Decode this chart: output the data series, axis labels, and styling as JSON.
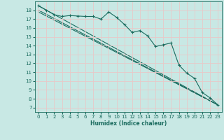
{
  "xlabel": "Humidex (Indice chaleur)",
  "bg_color": "#c8e8e4",
  "grid_color": "#e8c8c8",
  "line_color": "#1a6b5e",
  "xlim": [
    -0.5,
    23.5
  ],
  "ylim": [
    6.5,
    19.0
  ],
  "yticks": [
    7,
    8,
    9,
    10,
    11,
    12,
    13,
    14,
    15,
    16,
    17,
    18
  ],
  "xticks": [
    0,
    1,
    2,
    3,
    4,
    5,
    6,
    7,
    8,
    9,
    10,
    11,
    12,
    13,
    14,
    15,
    16,
    17,
    18,
    19,
    20,
    21,
    22,
    23
  ],
  "series1_x": [
    0,
    1,
    2,
    3,
    4,
    5,
    6,
    7,
    8,
    9,
    10,
    11,
    12,
    13,
    14,
    15,
    16,
    17,
    18,
    19,
    20,
    21,
    22,
    23
  ],
  "series1_y": [
    18.5,
    18.0,
    17.5,
    17.3,
    17.4,
    17.35,
    17.3,
    17.3,
    17.0,
    17.8,
    17.2,
    16.4,
    15.5,
    15.7,
    15.1,
    13.9,
    14.1,
    14.3,
    11.8,
    10.9,
    10.3,
    8.7,
    8.1,
    7.3
  ],
  "series2_x": [
    0,
    23
  ],
  "series2_y": [
    18.5,
    7.3
  ],
  "series3_x": [
    0,
    23
  ],
  "series3_y": [
    18.0,
    7.3
  ],
  "series4_x": [
    0,
    23
  ],
  "series4_y": [
    17.8,
    7.3
  ]
}
